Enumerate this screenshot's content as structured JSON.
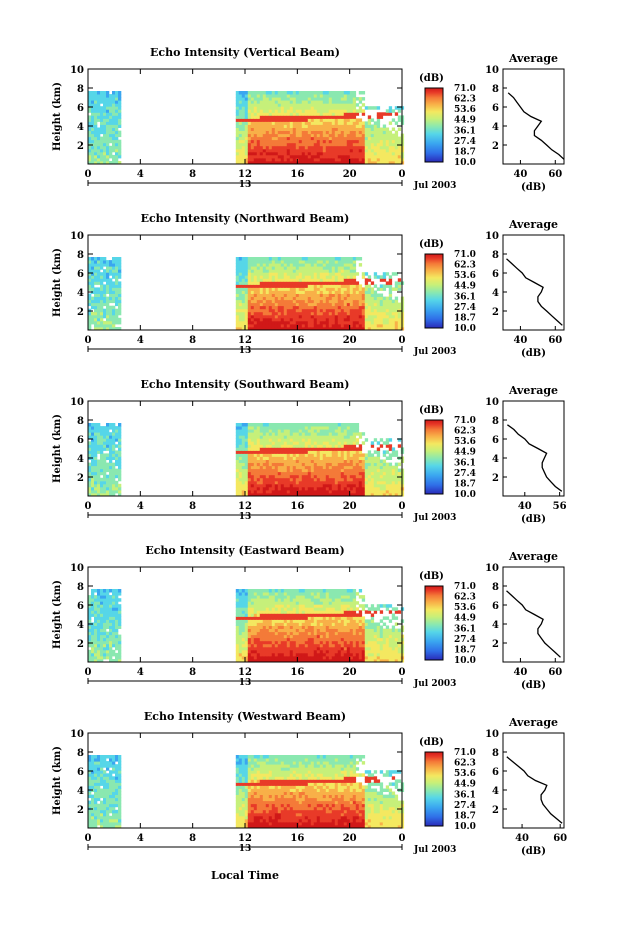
{
  "figure": {
    "x_axis_label": "Local Time",
    "colorbar_unit": "(dB)",
    "colorbar_ticks": [
      "71.0",
      "62.3",
      "53.6",
      "44.9",
      "36.1",
      "27.4",
      "18.7",
      "10.0"
    ],
    "date_label": "Jul 2003",
    "day_label": "13",
    "avg_title": "Average",
    "avg_xlabel": "(dB)"
  },
  "chart_data": [
    {
      "type": "heatmap",
      "title": "Echo Intensity (Vertical Beam)",
      "ylabel": "Height (km)",
      "xlim": [
        0,
        24
      ],
      "ylim": [
        0,
        10
      ],
      "x_ticks": [
        "0",
        "4",
        "8",
        "12",
        "16",
        "20",
        "0"
      ],
      "y_ticks": [
        "2",
        "4",
        "6",
        "8",
        "10"
      ],
      "data_intervals_hours": [
        [
          0,
          2.3
        ],
        [
          11.3,
          24
        ]
      ],
      "colorbar": {
        "min": 10.0,
        "max": 71.0,
        "unit": "dB"
      },
      "average_profile": {
        "xlim": [
          30,
          65
        ],
        "x_ticks": [
          "40",
          "60"
        ],
        "height_km": [
          0.5,
          1,
          1.5,
          2,
          2.5,
          3,
          3.5,
          4,
          4.5,
          5,
          5.5,
          6,
          6.5,
          7,
          7.5
        ],
        "db": [
          65,
          62,
          58,
          55,
          52,
          48,
          48,
          50,
          52,
          46,
          42,
          40,
          38,
          36,
          33
        ]
      }
    },
    {
      "type": "heatmap",
      "title": "Echo Intensity (Northward Beam)",
      "ylabel": "Height (km)",
      "xlim": [
        0,
        24
      ],
      "ylim": [
        0,
        10
      ],
      "x_ticks": [
        "0",
        "4",
        "8",
        "12",
        "16",
        "20",
        "0"
      ],
      "y_ticks": [
        "2",
        "4",
        "6",
        "8",
        "10"
      ],
      "data_intervals_hours": [
        [
          0,
          2.3
        ],
        [
          11.3,
          24
        ]
      ],
      "colorbar": {
        "min": 10.0,
        "max": 71.0,
        "unit": "dB"
      },
      "average_profile": {
        "xlim": [
          30,
          65
        ],
        "x_ticks": [
          "40",
          "60"
        ],
        "height_km": [
          0.5,
          1,
          1.5,
          2,
          2.5,
          3,
          3.5,
          4,
          4.5,
          5,
          5.5,
          6,
          6.5,
          7,
          7.5
        ],
        "db": [
          64,
          61,
          58,
          55,
          52,
          50,
          50,
          52,
          53,
          48,
          43,
          41,
          38,
          35,
          32
        ]
      }
    },
    {
      "type": "heatmap",
      "title": "Echo Intensity (Southward Beam)",
      "ylabel": "Height (km)",
      "xlim": [
        0,
        24
      ],
      "ylim": [
        0,
        10
      ],
      "x_ticks": [
        "0",
        "4",
        "8",
        "12",
        "16",
        "20",
        "0"
      ],
      "y_ticks": [
        "2",
        "4",
        "6",
        "8",
        "10"
      ],
      "data_intervals_hours": [
        [
          0,
          2.3
        ],
        [
          11.3,
          24
        ]
      ],
      "colorbar": {
        "min": 10.0,
        "max": 71.0,
        "unit": "dB"
      },
      "average_profile": {
        "xlim": [
          30,
          58
        ],
        "x_ticks": [
          "40",
          "56"
        ],
        "height_km": [
          0.5,
          1,
          1.5,
          2,
          2.5,
          3,
          3.5,
          4,
          4.5,
          5,
          5.5,
          6,
          6.5,
          7,
          7.5
        ],
        "db": [
          57,
          54,
          52,
          50,
          49,
          48,
          48,
          49,
          50,
          46,
          42,
          40,
          37,
          35,
          32
        ]
      }
    },
    {
      "type": "heatmap",
      "title": "Echo Intensity (Eastward Beam)",
      "ylabel": "Height (km)",
      "xlim": [
        0,
        24
      ],
      "ylim": [
        0,
        10
      ],
      "x_ticks": [
        "0",
        "4",
        "8",
        "12",
        "16",
        "20",
        "0"
      ],
      "y_ticks": [
        "2",
        "4",
        "6",
        "8",
        "10"
      ],
      "data_intervals_hours": [
        [
          0,
          2.3
        ],
        [
          11.3,
          24
        ]
      ],
      "colorbar": {
        "min": 10.0,
        "max": 71.0,
        "unit": "dB"
      },
      "average_profile": {
        "xlim": [
          30,
          65
        ],
        "x_ticks": [
          "40",
          "60"
        ],
        "height_km": [
          0.5,
          1,
          1.5,
          2,
          2.5,
          3,
          3.5,
          4,
          4.5,
          5,
          5.5,
          6,
          6.5,
          7,
          7.5
        ],
        "db": [
          63,
          60,
          57,
          54,
          52,
          50,
          50,
          52,
          53,
          48,
          43,
          41,
          38,
          35,
          32
        ]
      }
    },
    {
      "type": "heatmap",
      "title": "Echo Intensity (Westward Beam)",
      "ylabel": "Height (km)",
      "xlim": [
        0,
        24
      ],
      "ylim": [
        0,
        10
      ],
      "x_ticks": [
        "0",
        "4",
        "8",
        "12",
        "16",
        "20",
        "0"
      ],
      "y_ticks": [
        "2",
        "4",
        "6",
        "8",
        "10"
      ],
      "data_intervals_hours": [
        [
          0,
          2.3
        ],
        [
          11.3,
          24
        ]
      ],
      "colorbar": {
        "min": 10.0,
        "max": 71.0,
        "unit": "dB"
      },
      "average_profile": {
        "xlim": [
          30,
          62
        ],
        "x_ticks": [
          "40",
          "60"
        ],
        "height_km": [
          0.5,
          1,
          1.5,
          2,
          2.5,
          3,
          3.5,
          4,
          4.5,
          5,
          5.5,
          6,
          6.5,
          7,
          7.5
        ],
        "db": [
          61,
          58,
          55,
          53,
          51,
          50,
          50,
          52,
          53,
          47,
          43,
          41,
          38,
          35,
          32
        ]
      }
    }
  ],
  "colors": {
    "scale": [
      "#2a2ab8",
      "#2f6ee8",
      "#3aa6f0",
      "#56d6e8",
      "#8ae8b0",
      "#c6f07a",
      "#f4e860",
      "#f8b048",
      "#f47a38",
      "#e83a28",
      "#d01818"
    ]
  }
}
